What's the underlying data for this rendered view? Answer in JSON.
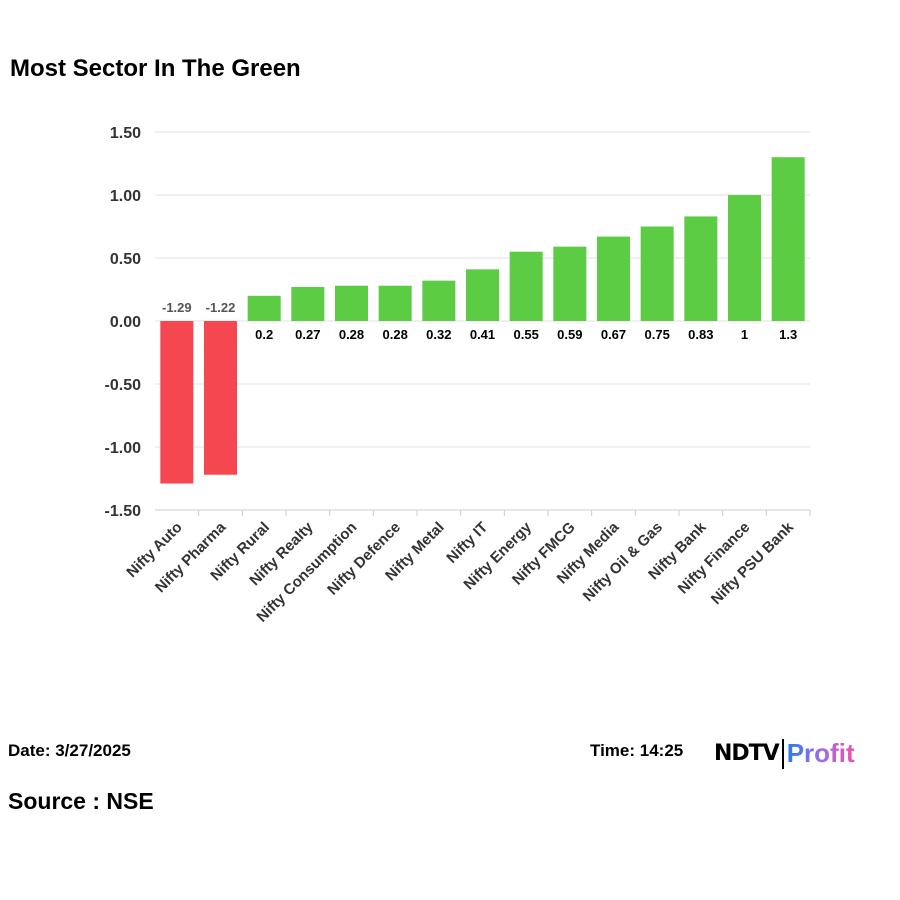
{
  "title": "Most Sector In The Green",
  "date": "Date: 3/27/2025",
  "time": "Time: 14:25",
  "source": "Source : NSE",
  "logo": {
    "ndtv": "NDTV",
    "profit": "Profit"
  },
  "colors": {
    "positive": "#5ccc45",
    "negative": "#f5474f"
  },
  "chart_data": {
    "type": "bar",
    "title": "Most Sector In The Green",
    "categories": [
      "Nifty Auto",
      "Nifty Pharma",
      "Nifty Rural",
      "Nifty Realty",
      "Nifty Consumption",
      "Nifty Defence",
      "Nifty Metal",
      "Nifty IT",
      "Nifty Energy",
      "Nifty FMCG",
      "Nifty Media",
      "Nifty Oil & Gas",
      "Nifty Bank",
      "Nifty Finance",
      "Nifty PSU Bank"
    ],
    "values": [
      -1.29,
      -1.22,
      0.2,
      0.27,
      0.28,
      0.28,
      0.32,
      0.41,
      0.55,
      0.59,
      0.67,
      0.75,
      0.83,
      1,
      1.3
    ],
    "labels": [
      "-1.29",
      "-1.22",
      "0.2",
      "0.27",
      "0.28",
      "0.28",
      "0.32",
      "0.41",
      "0.55",
      "0.59",
      "0.67",
      "0.75",
      "0.83",
      "1",
      "1.3"
    ],
    "yticks": [
      "1.50",
      "1.00",
      "0.50",
      "0.00",
      "-0.50",
      "-1.00",
      "-1.50"
    ],
    "ylim": [
      -1.5,
      1.5
    ],
    "grid": true
  }
}
